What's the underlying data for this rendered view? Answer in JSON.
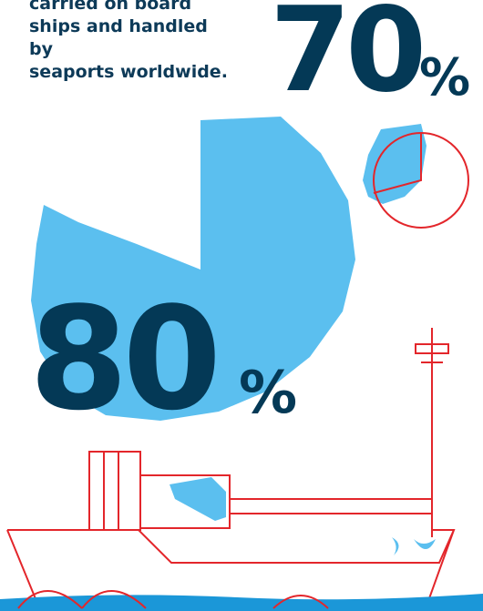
{
  "intro": {
    "lines": [
      "carried on board",
      "ships and handled by",
      "seaports worldwide."
    ]
  },
  "stats": {
    "seventy": {
      "number": "70",
      "unit": "%"
    },
    "eighty": {
      "number": "80",
      "unit": "%"
    }
  },
  "colors": {
    "navy": "#043956",
    "light_blue": "#5bbfef",
    "red": "#e3262b",
    "sea": "#1b97d8"
  }
}
